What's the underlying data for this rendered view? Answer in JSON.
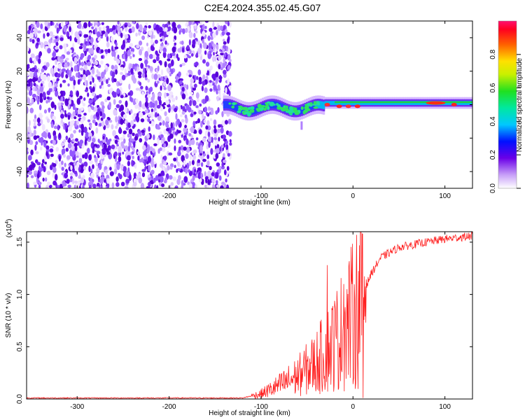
{
  "title": "C2E4.2024.355.02.45.G07",
  "chart_data": [
    {
      "type": "heatmap",
      "xlabel": "Height of straight line (km)",
      "ylabel": "Frequency (Hz)",
      "xlim": [
        -355,
        130
      ],
      "ylim": [
        -50,
        50
      ],
      "xticks": [
        -300,
        -200,
        -100,
        0,
        100
      ],
      "yticks": [
        -40,
        -20,
        0,
        20,
        40
      ],
      "colorbar": {
        "label": "Normalized spectral amplitude",
        "range": [
          0,
          1
        ],
        "ticks": [
          "0.0",
          "0.2",
          "0.4",
          "0.6",
          "0.8"
        ]
      },
      "regions": [
        {
          "name": "noise",
          "x_range": [
            -355,
            -133
          ],
          "y_range": [
            -50,
            50
          ]
        },
        {
          "name": "signal",
          "x_range": [
            -140,
            130
          ],
          "center_freq": 0,
          "peak_freq_range": [
            -5,
            5
          ]
        }
      ]
    },
    {
      "type": "line",
      "xlabel": "Height of straight line (km)",
      "ylabel": "SNR (10 * v/v)",
      "yscale_label": "(x10",
      "yscale_exp": "4",
      "xlim": [
        -355,
        130
      ],
      "ylim": [
        0,
        1.6
      ],
      "xticks": [
        -300,
        -200,
        -100,
        0,
        100
      ],
      "yticks": [
        "0.0",
        "0.5",
        "1.0",
        "1.5"
      ],
      "color": "#ff2020",
      "series_profile": [
        {
          "x": -355,
          "y": 0.01
        },
        {
          "x": -120,
          "y": 0.01
        },
        {
          "x": -100,
          "y": 0.05
        },
        {
          "x": -80,
          "y": 0.13
        },
        {
          "x": -60,
          "y": 0.22
        },
        {
          "x": -40,
          "y": 0.35
        },
        {
          "x": -20,
          "y": 0.55
        },
        {
          "x": 0,
          "y": 0.8
        },
        {
          "x": 10,
          "y": 1.0
        },
        {
          "x": 20,
          "y": 1.2
        },
        {
          "x": 30,
          "y": 1.35
        },
        {
          "x": 50,
          "y": 1.45
        },
        {
          "x": 80,
          "y": 1.5
        },
        {
          "x": 100,
          "y": 1.53
        },
        {
          "x": 130,
          "y": 1.56
        }
      ],
      "spikes": [
        {
          "x": -28,
          "y": 1.28
        },
        {
          "x": -10,
          "y": 1.1
        },
        {
          "x": 10,
          "y": 1.58
        },
        {
          "x": 11,
          "y": 0.01
        }
      ]
    }
  ]
}
